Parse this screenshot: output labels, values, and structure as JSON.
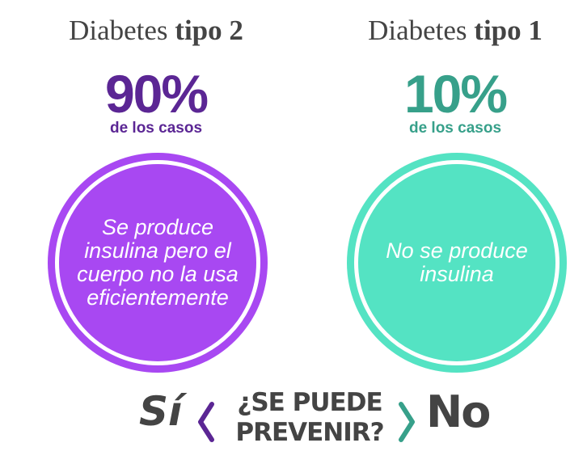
{
  "type2": {
    "title_plain": "Diabetes",
    "title_bold": "tipo 2",
    "percent": "90%",
    "subtitle": "de los casos",
    "description": "Se produce insulina pero el cuerpo no la usa eficientemente",
    "text_color": "#5b2694",
    "circle_color": "#a848f2"
  },
  "type1": {
    "title_plain": "Diabetes",
    "title_bold": "tipo 1",
    "percent": "10%",
    "subtitle": "de los casos",
    "description": "No se produce insulina",
    "text_color": "#37a08a",
    "circle_color": "#54e3c3"
  },
  "prevent": {
    "yes": "Sí",
    "question_line1": "¿SE PUEDE",
    "question_line2": "PREVENIR?",
    "no": "No",
    "left_arrow_icon": "chevron-left-icon",
    "right_arrow_icon": "chevron-right-icon"
  }
}
